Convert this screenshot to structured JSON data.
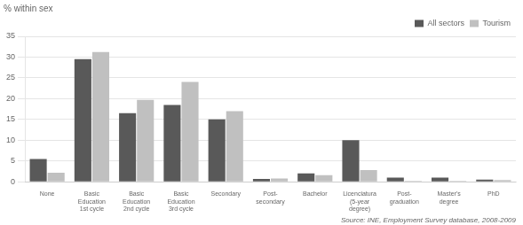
{
  "chart_data": {
    "type": "bar",
    "ylabel": "% within sex",
    "categories": [
      "None",
      "Basic\nEducation\n1st cycle",
      "Basic\nEducation\n2nd cycle",
      "Basic\nEducation\n3rd cycle",
      "Secondary",
      "Post-\nsecondary",
      "Bachelor",
      "Licenciatura\n(5-year\ndegree)",
      "Post-\ngraduation",
      "Master's\ndegree",
      "PhD"
    ],
    "series": [
      {
        "name": "All sectors",
        "color": "#595959",
        "values": [
          5.5,
          29.5,
          16.5,
          18.5,
          15.0,
          0.7,
          2.0,
          10.0,
          1.0,
          1.0,
          0.5
        ]
      },
      {
        "name": "Tourism",
        "color": "#c0c0c0",
        "values": [
          2.2,
          31.2,
          19.7,
          24.0,
          17.0,
          0.8,
          1.6,
          2.8,
          0.2,
          0.2,
          0.4
        ]
      }
    ],
    "ylim": [
      0,
      35
    ],
    "yticks": [
      0,
      5,
      10,
      15,
      20,
      25,
      30,
      35
    ],
    "grid": true,
    "legend": "upper right",
    "annotations": [
      "Source: INE, Employment Survey database, 2008-2009"
    ]
  }
}
